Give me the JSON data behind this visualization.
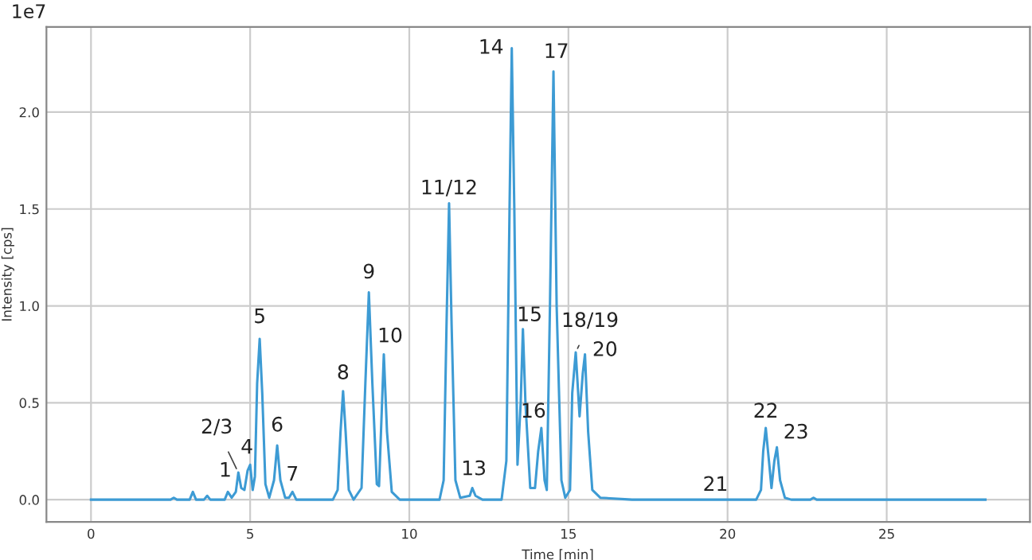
{
  "chart_data": {
    "type": "line",
    "xlabel": "Time [min]",
    "ylabel": "Intensity [cps]",
    "x": [
      0,
      2.5,
      2.6,
      2.7,
      3.1,
      3.2,
      3.3,
      3.55,
      3.65,
      3.75,
      4.2,
      4.3,
      4.42,
      4.55,
      4.63,
      4.72,
      4.82,
      4.92,
      5.0,
      5.08,
      5.15,
      5.22,
      5.3,
      5.38,
      5.48,
      5.6,
      5.75,
      5.85,
      5.95,
      6.1,
      6.22,
      6.33,
      6.45,
      7.6,
      7.75,
      7.84,
      7.92,
      8.0,
      8.1,
      8.25,
      8.5,
      8.62,
      8.73,
      8.84,
      8.98,
      9.05,
      9.1,
      9.2,
      9.3,
      9.45,
      9.7,
      10.95,
      11.08,
      11.17,
      11.25,
      11.33,
      11.45,
      11.6,
      11.9,
      11.98,
      12.08,
      12.3,
      12.9,
      13.05,
      13.15,
      13.22,
      13.3,
      13.4,
      13.5,
      13.57,
      13.65,
      13.8,
      13.95,
      14.05,
      14.15,
      14.25,
      14.32,
      14.42,
      14.53,
      14.63,
      14.78,
      14.9,
      15.05,
      15.12,
      15.23,
      15.35,
      15.45,
      15.52,
      15.62,
      15.75,
      16,
      17,
      19.62,
      20.9,
      21.05,
      21.12,
      21.2,
      21.3,
      21.38,
      21.47,
      21.55,
      21.65,
      21.8,
      22.0,
      22.6,
      22.7,
      22.8,
      23,
      28.1
    ],
    "series": [
      {
        "color": "#3d9bd4",
        "values": [
          0,
          0,
          0.01,
          0,
          0,
          0.04,
          0,
          0,
          0.02,
          0,
          0,
          0.04,
          0.01,
          0.04,
          0.14,
          0.06,
          0.05,
          0.15,
          0.18,
          0.05,
          0.12,
          0.6,
          0.83,
          0.55,
          0.08,
          0.01,
          0.1,
          0.28,
          0.1,
          0.01,
          0.01,
          0.04,
          0,
          0,
          0.05,
          0.35,
          0.56,
          0.35,
          0.05,
          0,
          0.06,
          0.6,
          1.07,
          0.6,
          0.08,
          0.07,
          0.3,
          0.75,
          0.35,
          0.04,
          0,
          0,
          0.1,
          0.9,
          1.53,
          0.9,
          0.1,
          0.01,
          0.02,
          0.06,
          0.02,
          0,
          0,
          0.2,
          1.5,
          2.33,
          1.5,
          0.18,
          0.5,
          0.88,
          0.5,
          0.06,
          0.06,
          0.25,
          0.37,
          0.1,
          0.05,
          1.0,
          2.21,
          1.0,
          0.1,
          0.01,
          0.05,
          0.55,
          0.76,
          0.43,
          0.65,
          0.75,
          0.35,
          0.05,
          0.01,
          0,
          0,
          0,
          0.05,
          0.25,
          0.37,
          0.2,
          0.06,
          0.2,
          0.27,
          0.1,
          0.01,
          0,
          0,
          0.01,
          0,
          0,
          0
        ]
      }
    ],
    "xlim": [
      -1.4,
      29.5
    ],
    "ylim": [
      -0.115,
      2.44
    ],
    "xticks": [
      0,
      5,
      10,
      15,
      20,
      25
    ],
    "yticks": [
      {
        "value": 0,
        "label": "0.0"
      },
      {
        "value": 0.5,
        "label": "0.5"
      },
      {
        "value": 1,
        "label": "1.0"
      },
      {
        "value": 1.5,
        "label": "1.5"
      },
      {
        "value": 2,
        "label": "2.0"
      }
    ],
    "grid": true,
    "marker": "none",
    "line_style": "solid",
    "annotations": [
      "1e7",
      {
        "text": "1",
        "x": 4.3,
        "y": 0.04
      },
      {
        "text": "2/3",
        "x": 4.63,
        "y": 0.14
      },
      {
        "text": "4",
        "x": 5.0,
        "y": 0.18
      },
      {
        "text": "5",
        "x": 5.3,
        "y": 0.83
      },
      {
        "text": "6",
        "x": 5.85,
        "y": 0.28
      },
      {
        "text": "7",
        "x": 6.33,
        "y": 0.04
      },
      {
        "text": "8",
        "x": 7.92,
        "y": 0.56
      },
      {
        "text": "9",
        "x": 8.73,
        "y": 1.07
      },
      {
        "text": "10",
        "x": 9.2,
        "y": 0.75
      },
      {
        "text": "11/12",
        "x": 11.25,
        "y": 1.53
      },
      {
        "text": "13",
        "x": 11.98,
        "y": 0.06
      },
      {
        "text": "14",
        "x": 13.22,
        "y": 2.33
      },
      {
        "text": "15",
        "x": 13.57,
        "y": 0.88
      },
      {
        "text": "16",
        "x": 14.15,
        "y": 0.37
      },
      {
        "text": "17",
        "x": 14.53,
        "y": 2.21
      },
      {
        "text": "18/19",
        "x": 15.23,
        "y": 0.76
      },
      {
        "text": "20",
        "x": 15.52,
        "y": 0.75
      },
      {
        "text": "21",
        "x": 19.62,
        "y": 0
      },
      {
        "text": "22",
        "x": 21.2,
        "y": 0.37
      },
      {
        "text": "23",
        "x": 21.55,
        "y": 0.27
      }
    ]
  }
}
